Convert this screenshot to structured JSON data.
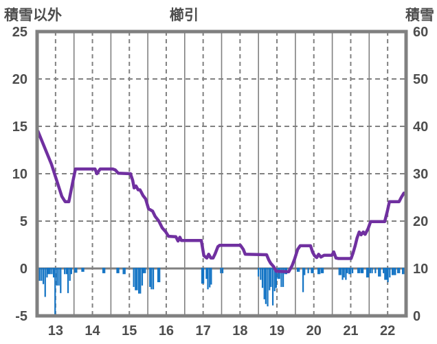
{
  "header": {
    "left_axis_title": "積雪以外",
    "title": "櫛引",
    "right_axis_title": "積雪"
  },
  "chart_data": {
    "type": "line+bar",
    "title": "櫛引",
    "grid": "on",
    "x_axis": {
      "range": [
        13,
        23
      ],
      "tick_labels": [
        "13",
        "14",
        "15",
        "16",
        "17",
        "18",
        "19",
        "20",
        "21",
        "22"
      ],
      "tick_positions": [
        13.5,
        14.5,
        15.5,
        16.5,
        17.5,
        18.5,
        19.5,
        20.5,
        21.5,
        22.5
      ],
      "solid_gridlines": [
        14,
        15,
        16,
        17,
        18,
        19,
        20,
        21,
        22
      ],
      "dashed_gridlines": [
        13.5,
        14.5,
        15.5,
        16.5,
        17.5,
        18.5,
        19.5,
        20.5,
        21.5,
        22.5
      ]
    },
    "left_axis": {
      "title": "積雪以外",
      "range": [
        -5,
        25
      ],
      "ticks": [
        25,
        20,
        15,
        10,
        5,
        0,
        -5
      ],
      "dashed_gridlines": [
        20,
        15,
        10,
        5
      ],
      "zero_line": 0
    },
    "right_axis": {
      "title": "積雪",
      "range": [
        0,
        60
      ],
      "ticks": [
        60,
        50,
        40,
        30,
        20,
        10,
        0
      ]
    },
    "colors": {
      "line": "#7030a0",
      "bar": "#1273c4",
      "grid": "#808080",
      "border": "#808080",
      "text": "#4d4d4d",
      "background": "#ffffff"
    },
    "series": [
      {
        "name": "積雪",
        "type": "line",
        "axis": "right",
        "color": "#7030a0",
        "points": [
          [
            13.02,
            39
          ],
          [
            13.39,
            32
          ],
          [
            13.67,
            25.2
          ],
          [
            13.76,
            24.1
          ],
          [
            13.86,
            24.1
          ],
          [
            13.95,
            27.6
          ],
          [
            14.04,
            31
          ],
          [
            14.57,
            31
          ],
          [
            14.62,
            30
          ],
          [
            14.71,
            31
          ],
          [
            15.05,
            31
          ],
          [
            15.12,
            30.8
          ],
          [
            15.2,
            30.1
          ],
          [
            15.53,
            30
          ],
          [
            15.59,
            28.6
          ],
          [
            15.63,
            27
          ],
          [
            15.68,
            27.4
          ],
          [
            15.74,
            26.6
          ],
          [
            15.79,
            26.6
          ],
          [
            15.87,
            25.4
          ],
          [
            15.94,
            24.7
          ],
          [
            16.02,
            22.6
          ],
          [
            16.13,
            22.1
          ],
          [
            16.2,
            21
          ],
          [
            16.3,
            20
          ],
          [
            16.39,
            18.6
          ],
          [
            16.48,
            17.8
          ],
          [
            16.56,
            16.8
          ],
          [
            16.76,
            16.7
          ],
          [
            16.82,
            15.8
          ],
          [
            16.87,
            16.6
          ],
          [
            16.91,
            15.9
          ],
          [
            17.45,
            15.9
          ],
          [
            17.52,
            12.7
          ],
          [
            17.6,
            12.2
          ],
          [
            17.65,
            13
          ],
          [
            17.71,
            12.2
          ],
          [
            17.77,
            12.2
          ],
          [
            17.82,
            13
          ],
          [
            17.9,
            14.6
          ],
          [
            17.95,
            14.9
          ],
          [
            18.51,
            14.9
          ],
          [
            18.59,
            14
          ],
          [
            18.64,
            13
          ],
          [
            19.22,
            12.9
          ],
          [
            19.28,
            11.8
          ],
          [
            19.33,
            11.1
          ],
          [
            19.41,
            10.4
          ],
          [
            19.48,
            9.4
          ],
          [
            19.82,
            9.3
          ],
          [
            19.91,
            10.6
          ],
          [
            19.98,
            12
          ],
          [
            20.06,
            14
          ],
          [
            20.13,
            14.8
          ],
          [
            20.41,
            14.8
          ],
          [
            20.47,
            13.4
          ],
          [
            20.52,
            12.7
          ],
          [
            20.58,
            12.3
          ],
          [
            20.63,
            13
          ],
          [
            20.69,
            12.4
          ],
          [
            20.78,
            12.8
          ],
          [
            20.99,
            12.8
          ],
          [
            21.04,
            13.5
          ],
          [
            21.1,
            12.2
          ],
          [
            21.17,
            12.1
          ],
          [
            21.51,
            12.1
          ],
          [
            21.56,
            13.2
          ],
          [
            21.62,
            14.8
          ],
          [
            21.67,
            16.4
          ],
          [
            21.73,
            17.7
          ],
          [
            21.78,
            17.1
          ],
          [
            21.84,
            17.7
          ],
          [
            21.89,
            17.2
          ],
          [
            21.97,
            18.4
          ],
          [
            22.04,
            19.9
          ],
          [
            22.42,
            19.9
          ],
          [
            22.49,
            22
          ],
          [
            22.55,
            24.1
          ],
          [
            22.81,
            24.1
          ],
          [
            22.87,
            25
          ],
          [
            22.94,
            25.9
          ],
          [
            23.0,
            25.9
          ]
        ]
      },
      {
        "name": "積雪以外",
        "type": "bar",
        "axis": "left",
        "color": "#1273c4",
        "baseline": 0,
        "bar_width_days": 0.041,
        "points": [
          [
            13.0,
            -0.95
          ],
          [
            13.05,
            -1.3
          ],
          [
            13.1,
            -1.3
          ],
          [
            13.15,
            -1.65
          ],
          [
            13.2,
            -3.0
          ],
          [
            13.25,
            -0.95
          ],
          [
            13.29,
            -0.6
          ],
          [
            13.33,
            -0.6
          ],
          [
            13.38,
            -0.6
          ],
          [
            13.43,
            -0.95
          ],
          [
            13.47,
            -5.0
          ],
          [
            13.52,
            -1.8
          ],
          [
            13.57,
            -1.8
          ],
          [
            13.62,
            -2.6
          ],
          [
            13.73,
            -0.6
          ],
          [
            13.78,
            -0.6
          ],
          [
            13.82,
            -2.6
          ],
          [
            13.87,
            -1.3
          ],
          [
            13.91,
            -0.6
          ],
          [
            14.01,
            -0.45
          ],
          [
            14.05,
            -0.45
          ],
          [
            14.2,
            -0.35
          ],
          [
            14.24,
            -0.35
          ],
          [
            14.77,
            -0.5
          ],
          [
            14.81,
            -0.5
          ],
          [
            15.15,
            -0.5
          ],
          [
            15.19,
            -0.5
          ],
          [
            15.32,
            -0.6
          ],
          [
            15.36,
            -0.6
          ],
          [
            15.6,
            -1.95
          ],
          [
            15.65,
            -2.3
          ],
          [
            15.69,
            -2.3
          ],
          [
            15.74,
            -2.65
          ],
          [
            15.78,
            -2.65
          ],
          [
            15.83,
            -1.8
          ],
          [
            15.87,
            -0.5
          ],
          [
            15.91,
            -0.5
          ],
          [
            16.04,
            -1.95
          ],
          [
            16.08,
            -2.2
          ],
          [
            16.13,
            -2.2
          ],
          [
            16.26,
            -1.45
          ],
          [
            16.3,
            -1.45
          ],
          [
            17.45,
            -1.6
          ],
          [
            17.49,
            -1.6
          ],
          [
            17.57,
            -1.1
          ],
          [
            17.61,
            -2.2
          ],
          [
            17.66,
            -2.0
          ],
          [
            17.7,
            -1.7
          ],
          [
            17.96,
            -0.5
          ],
          [
            18.01,
            -0.5
          ],
          [
            18.98,
            -0.85
          ],
          [
            19.04,
            -1.2
          ],
          [
            19.09,
            -2.05
          ],
          [
            19.14,
            -3.25
          ],
          [
            19.18,
            -3.75
          ],
          [
            19.23,
            -4.0
          ],
          [
            19.28,
            -2.3
          ],
          [
            19.32,
            -1.95
          ],
          [
            19.37,
            -3.9
          ],
          [
            19.42,
            -2.4
          ],
          [
            19.46,
            -2.05
          ],
          [
            19.51,
            -1.1
          ],
          [
            19.55,
            -1.1
          ],
          [
            19.6,
            -1.95
          ],
          [
            19.65,
            -1.95
          ],
          [
            19.7,
            -0.6
          ],
          [
            19.74,
            -0.6
          ],
          [
            20.04,
            -0.35
          ],
          [
            20.08,
            -0.35
          ],
          [
            20.19,
            -2.5
          ],
          [
            20.23,
            -0.7
          ],
          [
            20.33,
            -0.5
          ],
          [
            20.42,
            -0.5
          ],
          [
            20.46,
            -0.5
          ],
          [
            20.6,
            -0.6
          ],
          [
            20.64,
            -0.6
          ],
          [
            20.69,
            -0.5
          ],
          [
            20.73,
            -0.5
          ],
          [
            21.17,
            -0.7
          ],
          [
            21.21,
            -0.7
          ],
          [
            21.26,
            -1.2
          ],
          [
            21.3,
            -0.95
          ],
          [
            21.35,
            -1.2
          ],
          [
            21.39,
            -0.5
          ],
          [
            21.44,
            -0.6
          ],
          [
            21.48,
            -0.6
          ],
          [
            21.53,
            -0.5
          ],
          [
            21.68,
            -0.5
          ],
          [
            21.72,
            -0.5
          ],
          [
            21.77,
            -0.5
          ],
          [
            21.81,
            -0.5
          ],
          [
            21.92,
            -0.95
          ],
          [
            21.96,
            -0.95
          ],
          [
            22.01,
            -0.5
          ],
          [
            22.06,
            -0.5
          ],
          [
            22.15,
            -0.5
          ],
          [
            22.24,
            -0.85
          ],
          [
            22.28,
            -0.85
          ],
          [
            22.37,
            -0.5
          ],
          [
            22.41,
            -1.2
          ],
          [
            22.45,
            -1.2
          ],
          [
            22.49,
            -1.45
          ],
          [
            22.54,
            -0.95
          ],
          [
            22.61,
            -0.7
          ],
          [
            22.65,
            -0.7
          ],
          [
            22.69,
            -0.7
          ],
          [
            22.76,
            -0.5
          ],
          [
            22.8,
            -0.5
          ],
          [
            22.89,
            -0.6
          ],
          [
            22.93,
            -0.6
          ]
        ]
      }
    ]
  }
}
